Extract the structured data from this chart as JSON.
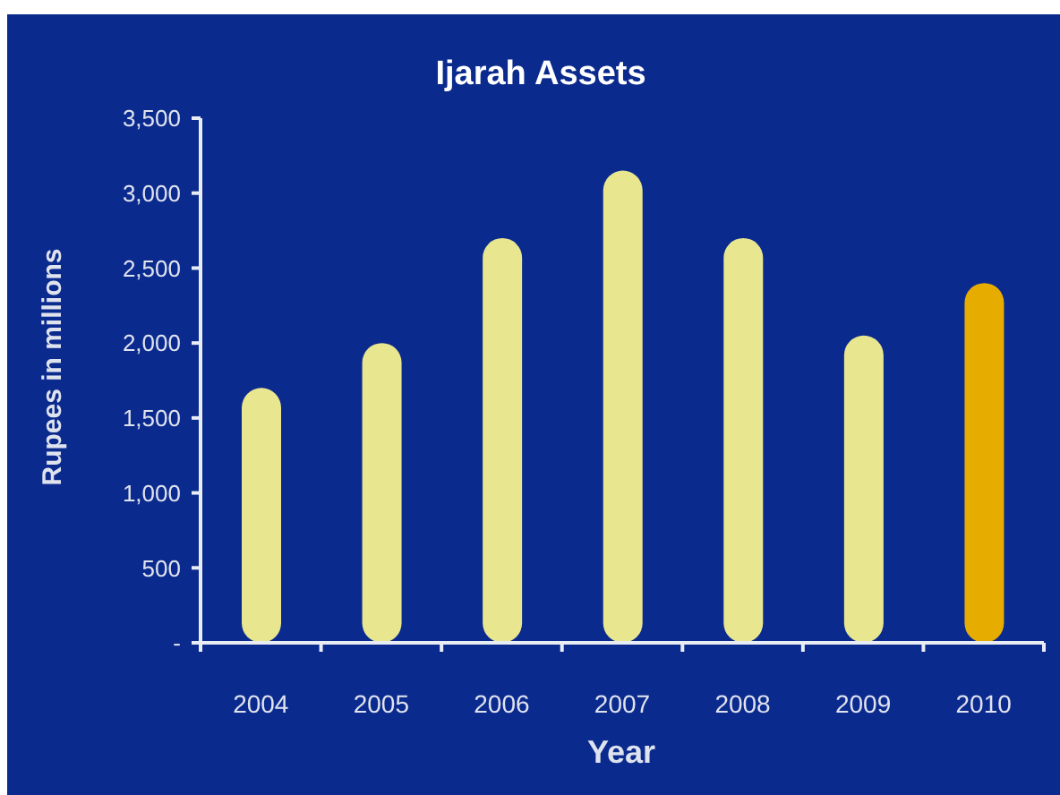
{
  "chart_data": {
    "type": "bar",
    "title": "Ijarah Assets",
    "xlabel": "Year",
    "ylabel": "Rupees in millions",
    "categories": [
      "2004",
      "2005",
      "2006",
      "2007",
      "2008",
      "2009",
      "2010"
    ],
    "values": [
      1700,
      2000,
      2700,
      3150,
      2700,
      2050,
      2400
    ],
    "colors": [
      "#e8e68f",
      "#e8e68f",
      "#e8e68f",
      "#e8e68f",
      "#e8e68f",
      "#e8e68f",
      "#e6ac00"
    ],
    "ylim": [
      0,
      3500
    ],
    "yticks": [
      {
        "value": 0,
        "label": "-"
      },
      500,
      {
        "value": 1000,
        "label": "1,000"
      },
      {
        "value": 1500,
        "label": "1,500"
      },
      {
        "value": 2000,
        "label": "2,000"
      },
      {
        "value": 2500,
        "label": "2,500"
      },
      {
        "value": 3000,
        "label": "3,000"
      },
      {
        "value": 3500,
        "label": "3,500"
      }
    ]
  }
}
